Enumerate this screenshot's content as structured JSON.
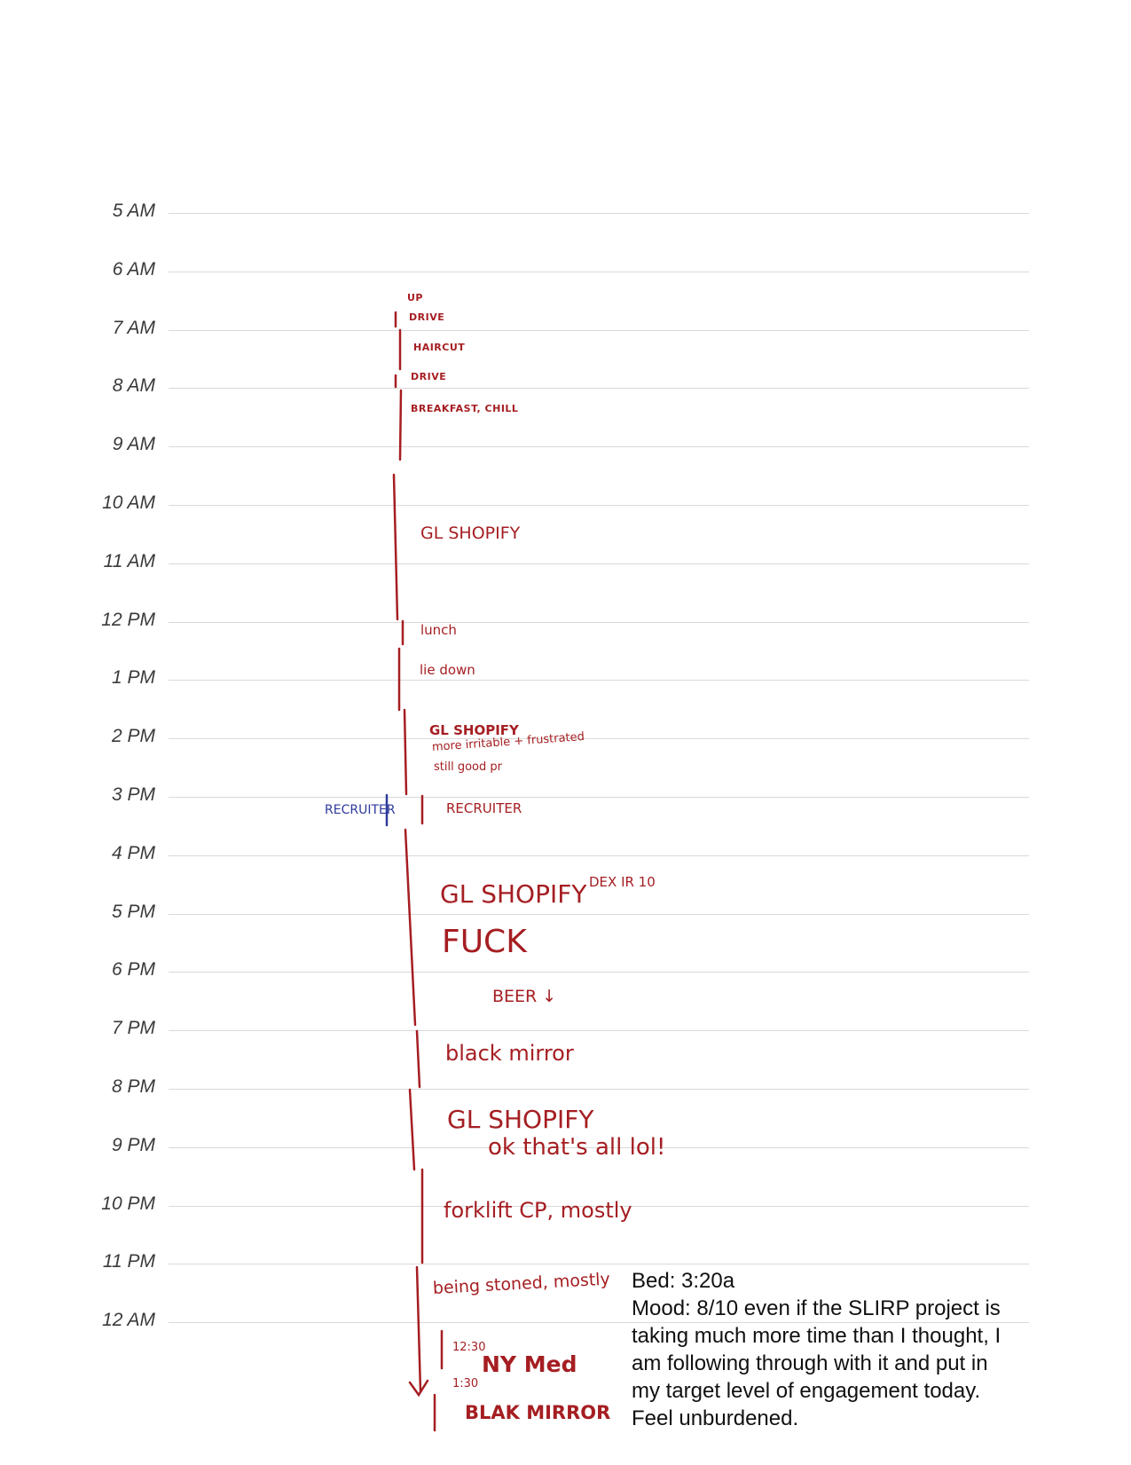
{
  "hours": [
    "5 AM",
    "6 AM",
    "7 AM",
    "8 AM",
    "9 AM",
    "10 AM",
    "11 AM",
    "12 PM",
    "1 PM",
    "2 PM",
    "3 PM",
    "4 PM",
    "5 PM",
    "6 PM",
    "7 PM",
    "8 PM",
    "9 PM",
    "10 PM",
    "11 PM",
    "12 AM"
  ],
  "notes": {
    "up": "UP",
    "drive1": "DRIVE",
    "haircut": "HAIRCUT",
    "drive2": "DRIVE",
    "breakfast": "BREAKFAST, CHILL",
    "gl_shopify_1": "GL SHOPIFY",
    "lunch": "lunch",
    "lie_down": "lie down",
    "gl_shopify_2": "GL SHOPIFY",
    "irritable": "more irritable + frustrated",
    "still_good": "still good pr",
    "recruiter_left": "RECRUITER",
    "recruiter": "RECRUITER",
    "gl_shopify_3": "GL SHOPIFY",
    "dex": "DEX IR 10",
    "fuck": "FUCK",
    "beer": "BEER ↓",
    "black_mirror": "black mirror",
    "gl_shopify_4": "GL SHOPIFY",
    "ok_thats_all": "ok that's all lol!",
    "forklift": "forklift CP, mostly",
    "being_stoned": "being stoned, mostly",
    "time_1230": "12:30",
    "ny_med": "NY Med",
    "time_130": "1:30",
    "blak_mirror": "BLAK MIRROR"
  },
  "summary": {
    "bed": "Bed: 3:20a",
    "mood_lines": [
      "Mood: 8/10 even if the SLIRP project is",
      "taking much more time than I thought, I",
      "am following through with it and put in",
      "my target level of engagement today.",
      "Feel unburdened."
    ]
  },
  "colors": {
    "ink_red": "#a51e22",
    "ink_blue": "#2f3a9c",
    "grid": "#d9d9d9"
  }
}
